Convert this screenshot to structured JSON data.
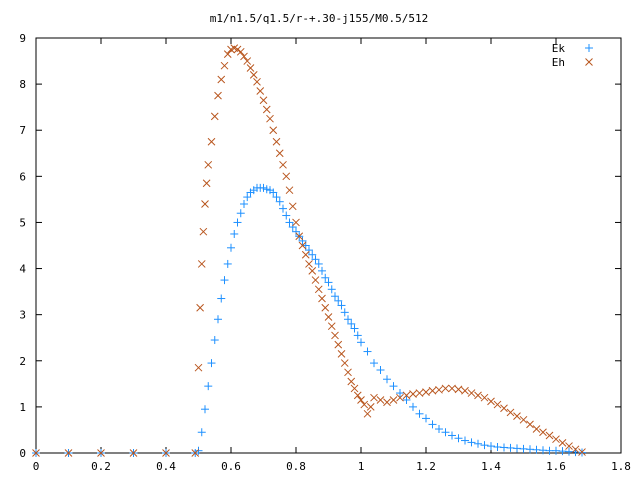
{
  "chart_data": {
    "type": "scatter",
    "title": "m1/n1.5/q1.5/r-+.30-j155/M0.5/512",
    "xlabel": "",
    "ylabel": "",
    "xlim": [
      0,
      1.8
    ],
    "ylim": [
      0,
      9
    ],
    "grid": false,
    "legend": "top-right",
    "x_ticks": [
      "0",
      "0.2",
      "0.4",
      "0.6",
      "0.8",
      "1",
      "1.2",
      "1.4",
      "1.6",
      "1.8"
    ],
    "y_ticks": [
      "0",
      "1",
      "2",
      "3",
      "4",
      "5",
      "6",
      "7",
      "8",
      "9"
    ],
    "series": [
      {
        "name": "Ek",
        "marker": "plus",
        "color": "#1e90ff",
        "x": [
          0,
          0.1,
          0.2,
          0.3,
          0.4,
          0.49,
          0.5,
          0.51,
          0.52,
          0.53,
          0.54,
          0.55,
          0.56,
          0.57,
          0.58,
          0.59,
          0.6,
          0.61,
          0.62,
          0.63,
          0.64,
          0.65,
          0.66,
          0.67,
          0.68,
          0.69,
          0.7,
          0.71,
          0.72,
          0.73,
          0.74,
          0.75,
          0.76,
          0.77,
          0.78,
          0.79,
          0.8,
          0.81,
          0.82,
          0.83,
          0.84,
          0.85,
          0.86,
          0.87,
          0.88,
          0.89,
          0.9,
          0.91,
          0.92,
          0.93,
          0.94,
          0.95,
          0.96,
          0.97,
          0.98,
          0.99,
          1.0,
          1.02,
          1.04,
          1.06,
          1.08,
          1.1,
          1.12,
          1.14,
          1.16,
          1.18,
          1.2,
          1.22,
          1.24,
          1.26,
          1.28,
          1.3,
          1.32,
          1.34,
          1.36,
          1.38,
          1.4,
          1.42,
          1.44,
          1.46,
          1.48,
          1.5,
          1.52,
          1.54,
          1.56,
          1.58,
          1.6,
          1.62,
          1.64,
          1.66,
          1.68
        ],
        "y": [
          0,
          0,
          0,
          0,
          0,
          0,
          0.05,
          0.45,
          0.95,
          1.45,
          1.95,
          2.45,
          2.9,
          3.35,
          3.75,
          4.1,
          4.45,
          4.75,
          5.0,
          5.2,
          5.4,
          5.55,
          5.65,
          5.7,
          5.75,
          5.75,
          5.75,
          5.72,
          5.7,
          5.65,
          5.55,
          5.45,
          5.3,
          5.15,
          5.0,
          4.9,
          4.8,
          4.7,
          4.6,
          4.5,
          4.4,
          4.3,
          4.2,
          4.1,
          3.95,
          3.8,
          3.7,
          3.55,
          3.4,
          3.3,
          3.2,
          3.05,
          2.9,
          2.8,
          2.7,
          2.55,
          2.4,
          2.2,
          1.95,
          1.8,
          1.6,
          1.45,
          1.3,
          1.15,
          1.0,
          0.85,
          0.75,
          0.62,
          0.52,
          0.45,
          0.38,
          0.32,
          0.27,
          0.23,
          0.2,
          0.17,
          0.15,
          0.13,
          0.12,
          0.11,
          0.1,
          0.09,
          0.08,
          0.07,
          0.06,
          0.05,
          0.05,
          0.04,
          0.03,
          0.02,
          0.01
        ]
      },
      {
        "name": "Eh",
        "marker": "cross",
        "color": "#b8541c",
        "x": [
          0,
          0.1,
          0.2,
          0.3,
          0.4,
          0.49,
          0.5,
          0.505,
          0.51,
          0.515,
          0.52,
          0.525,
          0.53,
          0.54,
          0.55,
          0.56,
          0.57,
          0.58,
          0.59,
          0.6,
          0.61,
          0.62,
          0.63,
          0.64,
          0.65,
          0.66,
          0.67,
          0.68,
          0.69,
          0.7,
          0.71,
          0.72,
          0.73,
          0.74,
          0.75,
          0.76,
          0.77,
          0.78,
          0.79,
          0.8,
          0.81,
          0.82,
          0.83,
          0.84,
          0.85,
          0.86,
          0.87,
          0.88,
          0.89,
          0.9,
          0.91,
          0.92,
          0.93,
          0.94,
          0.95,
          0.96,
          0.97,
          0.98,
          0.99,
          1.0,
          1.01,
          1.02,
          1.03,
          1.04,
          1.06,
          1.08,
          1.1,
          1.12,
          1.14,
          1.16,
          1.18,
          1.2,
          1.22,
          1.24,
          1.26,
          1.28,
          1.3,
          1.32,
          1.34,
          1.36,
          1.38,
          1.4,
          1.42,
          1.44,
          1.46,
          1.48,
          1.5,
          1.52,
          1.54,
          1.56,
          1.58,
          1.6,
          1.62,
          1.64,
          1.66,
          1.68
        ],
        "y": [
          0,
          0,
          0,
          0,
          0,
          0,
          1.85,
          3.15,
          4.1,
          4.8,
          5.4,
          5.85,
          6.25,
          6.75,
          7.3,
          7.75,
          8.1,
          8.4,
          8.65,
          8.75,
          8.78,
          8.75,
          8.7,
          8.6,
          8.5,
          8.35,
          8.2,
          8.05,
          7.85,
          7.65,
          7.45,
          7.25,
          7.0,
          6.75,
          6.5,
          6.25,
          6.0,
          5.7,
          5.35,
          5.0,
          4.7,
          4.5,
          4.3,
          4.1,
          3.95,
          3.75,
          3.55,
          3.35,
          3.15,
          2.95,
          2.75,
          2.55,
          2.35,
          2.15,
          1.95,
          1.75,
          1.55,
          1.4,
          1.25,
          1.15,
          1.05,
          0.85,
          1.0,
          1.2,
          1.15,
          1.1,
          1.15,
          1.2,
          1.25,
          1.28,
          1.3,
          1.32,
          1.35,
          1.37,
          1.4,
          1.4,
          1.38,
          1.35,
          1.3,
          1.25,
          1.2,
          1.12,
          1.05,
          0.97,
          0.88,
          0.8,
          0.72,
          0.62,
          0.52,
          0.45,
          0.38,
          0.3,
          0.22,
          0.15,
          0.08,
          0.02
        ]
      }
    ]
  }
}
